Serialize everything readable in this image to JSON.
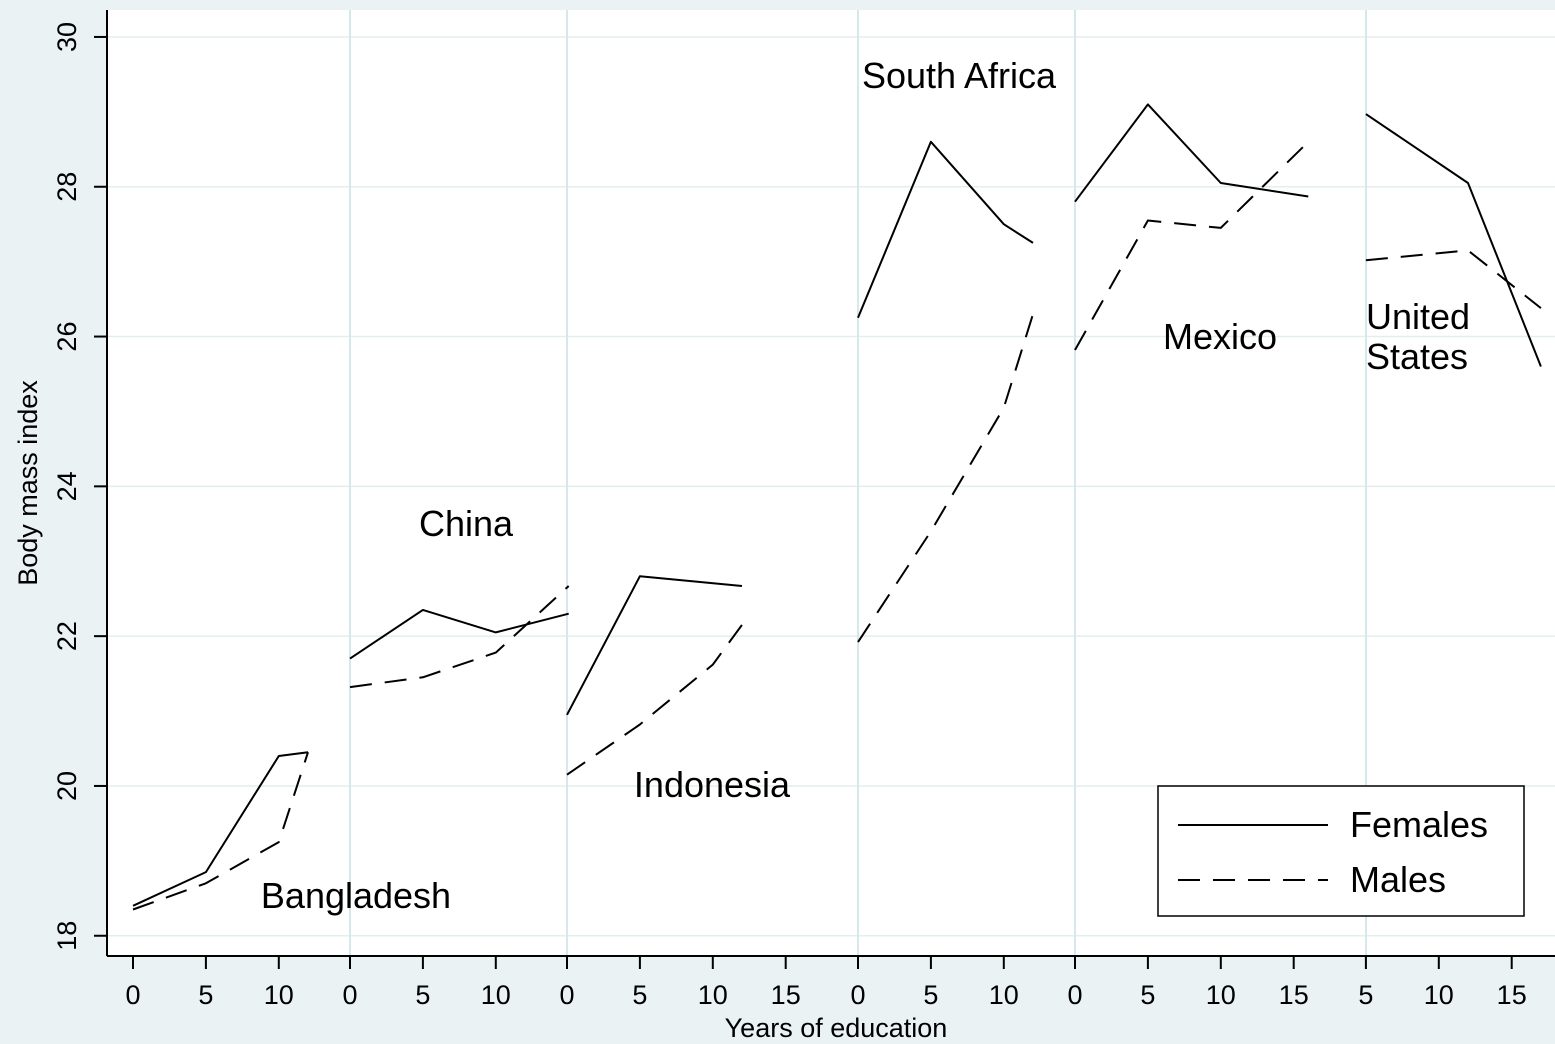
{
  "chart_data": {
    "type": "line",
    "title": "",
    "xlabel": "Years of education",
    "ylabel": "Body mass index",
    "ylim": [
      17.7,
      30.3
    ],
    "yticks": [
      18,
      20,
      22,
      24,
      26,
      28,
      30
    ],
    "grid": true,
    "legend": {
      "position": "bottom-right",
      "entries": [
        {
          "name": "Females",
          "style": "solid"
        },
        {
          "name": "Males",
          "style": "dashed"
        }
      ]
    },
    "colors": {
      "background": "#eaf2f3",
      "plot": "#ffffff",
      "grid": "#e3eef0",
      "separator": "#d6e8ec",
      "line": "#000000"
    },
    "panels": [
      {
        "label": "Bangladesh",
        "xticks": [
          0,
          5,
          10
        ],
        "series": [
          {
            "name": "Females",
            "x": [
              0,
              5,
              10,
              12
            ],
            "y": [
              18.4,
              18.85,
              20.4,
              20.45
            ]
          },
          {
            "name": "Males",
            "x": [
              0,
              5,
              10,
              12
            ],
            "y": [
              18.35,
              18.7,
              19.25,
              20.45
            ]
          }
        ]
      },
      {
        "label": "China",
        "xticks": [
          0,
          5,
          10
        ],
        "series": [
          {
            "name": "Females",
            "x": [
              0,
              5,
              10,
              15
            ],
            "y": [
              21.7,
              22.35,
              22.05,
              22.3
            ]
          },
          {
            "name": "Males",
            "x": [
              0,
              5,
              10,
              15
            ],
            "y": [
              21.32,
              21.45,
              21.78,
              22.67
            ]
          }
        ]
      },
      {
        "label": "Indonesia",
        "xticks": [
          0,
          5,
          10,
          15
        ],
        "series": [
          {
            "name": "Females",
            "x": [
              0,
              5,
              12
            ],
            "y": [
              20.95,
              22.8,
              22.67
            ]
          },
          {
            "name": "Males",
            "x": [
              0,
              5,
              10,
              12
            ],
            "y": [
              20.15,
              20.82,
              21.62,
              22.15
            ]
          }
        ]
      },
      {
        "label": "South Africa",
        "xticks": [
          0,
          5,
          10
        ],
        "series": [
          {
            "name": "Females",
            "x": [
              0,
              5,
              10,
              12
            ],
            "y": [
              26.25,
              28.6,
              27.5,
              27.25
            ]
          },
          {
            "name": "Males",
            "x": [
              0,
              5,
              10,
              12
            ],
            "y": [
              21.92,
              23.4,
              25.05,
              26.3
            ]
          }
        ]
      },
      {
        "label": "Mexico",
        "xticks": [
          0,
          5,
          10,
          15
        ],
        "series": [
          {
            "name": "Females",
            "x": [
              0,
              5,
              10,
              16
            ],
            "y": [
              27.8,
              29.1,
              28.05,
              27.87
            ]
          },
          {
            "name": "Males",
            "x": [
              0,
              5,
              10,
              16
            ],
            "y": [
              25.82,
              27.55,
              27.45,
              28.6
            ]
          }
        ]
      },
      {
        "label": "United States",
        "xticks": [
          5,
          10,
          15
        ],
        "series": [
          {
            "name": "Females",
            "x": [
              5,
              12,
              17
            ],
            "y": [
              28.97,
              28.05,
              25.6
            ]
          },
          {
            "name": "Males",
            "x": [
              5,
              12,
              17
            ],
            "y": [
              27.02,
              27.15,
              26.38
            ]
          }
        ]
      }
    ]
  }
}
